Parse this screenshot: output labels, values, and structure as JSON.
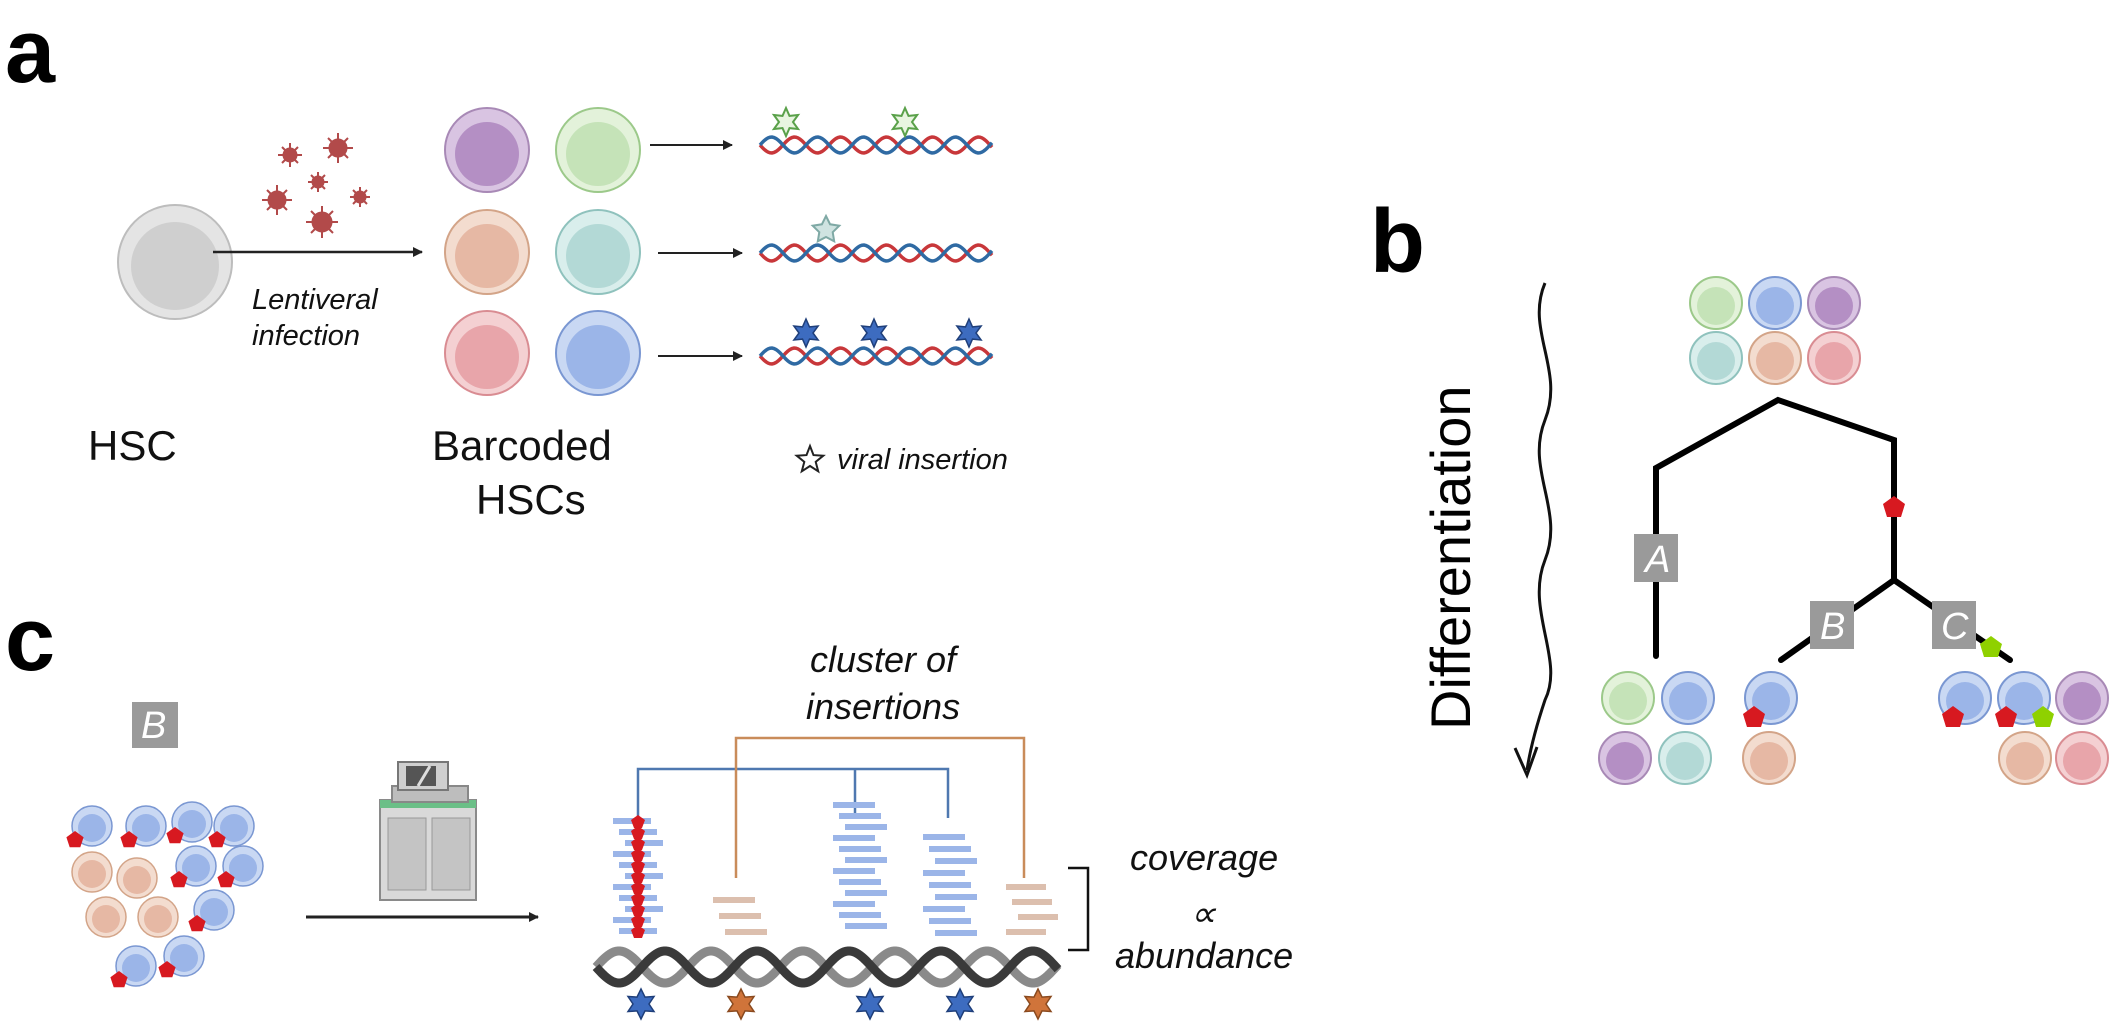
{
  "panels": {
    "a": {
      "letter": "a",
      "hsc_label": "HSC",
      "infection_label_line1": "Lentiveral",
      "infection_label_line2": "infection",
      "barcoded_label_line1": "Barcoded",
      "barcoded_label_line2": "HSCs",
      "legend_label": "viral insertion"
    },
    "b": {
      "letter": "b",
      "axis_label": "Differentiation",
      "branch_a": "A",
      "branch_b": "B",
      "branch_c": "C"
    },
    "c": {
      "letter": "c",
      "clone_tag": "B",
      "cluster_label_line1": "cluster of",
      "cluster_label_line2": "insertions",
      "coverage_line1": "coverage",
      "coverage_line2": "∝",
      "coverage_line3": "abundance"
    }
  },
  "colors": {
    "purple": "#b48fc4",
    "green": "#c5e3b8",
    "peach": "#e6b8a4",
    "teal": "#b3d9d6",
    "pink": "#e8a5aa",
    "blue": "#9bb5e8",
    "grey_cell": "#cfcfcf",
    "virus": "#b24a4a",
    "red_marker": "#d71920",
    "lime_marker": "#8fd100",
    "dna_red": "#c8373a",
    "dna_blue": "#2f6aa3",
    "star_blue": "#3d6cc0",
    "star_orange": "#d0743a",
    "bracket_blue": "#4f78b0",
    "bracket_orange": "#c98c5a",
    "tag_grey": "#9a9a9a"
  }
}
